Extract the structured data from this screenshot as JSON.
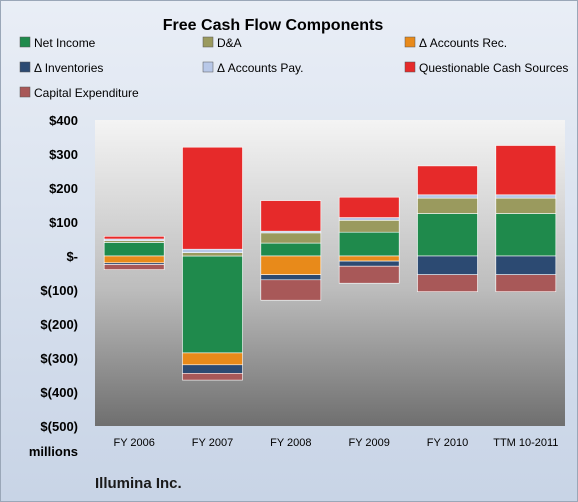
{
  "chart_data": {
    "type": "bar",
    "stacked": true,
    "title": "Free Cash Flow Components",
    "unit_label": "millions",
    "footer": "Illumina Inc.",
    "categories": [
      "FY 2006",
      "FY 2007",
      "FY 2008",
      "FY 2009",
      "FY 2010",
      "TTM 10-2011"
    ],
    "y_ticks": [
      "$400",
      "$300",
      "$200",
      "$100",
      "$-",
      "$(100)",
      "$(200)",
      "$(300)",
      "$(400)",
      "$(500)"
    ],
    "ylim": [
      -500,
      400
    ],
    "grid": false,
    "legend_position": "top",
    "series": [
      {
        "name": "Net Income",
        "color": "#1f8a4c",
        "values": [
          40,
          -285,
          38,
          70,
          125,
          125
        ]
      },
      {
        "name": "D&A",
        "color": "#9a9a5e",
        "values": [
          5,
          10,
          30,
          35,
          45,
          45
        ]
      },
      {
        "name": "Δ Accounts Rec.",
        "color": "#e88a1a",
        "values": [
          -20,
          -35,
          -55,
          -15,
          0,
          0
        ]
      },
      {
        "name": "Δ Inventories",
        "color": "#2c4a72",
        "values": [
          -5,
          -25,
          -15,
          -15,
          -55,
          -55
        ]
      },
      {
        "name": "Δ Accounts Pay.",
        "color": "#b8c8e8",
        "values": [
          5,
          10,
          5,
          8,
          10,
          10
        ]
      },
      {
        "name": "Questionable Cash Sources",
        "color": "#e62a2a",
        "values": [
          8,
          300,
          90,
          60,
          85,
          145
        ]
      },
      {
        "name": "Capital Expenditure",
        "color": "#a85858",
        "values": [
          -15,
          -20,
          -60,
          -50,
          -50,
          -50
        ]
      }
    ]
  }
}
